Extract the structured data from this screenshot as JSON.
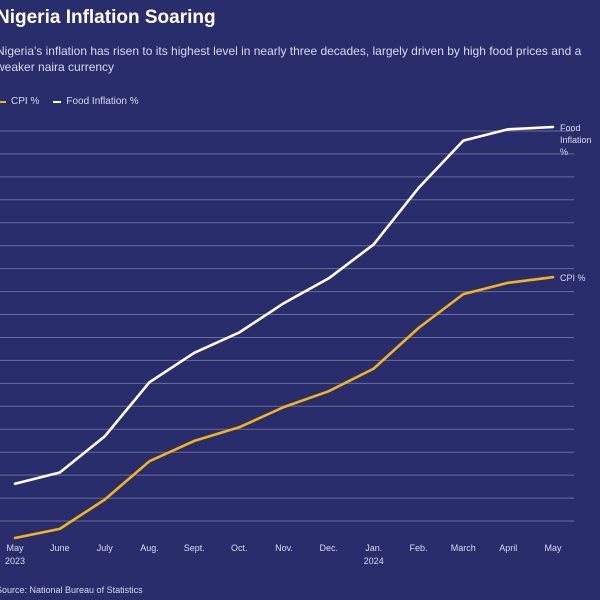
{
  "header": {
    "title": "Nigeria Inflation Soaring",
    "subtitle_line1": "Nigeria's inflation has risen to its highest level in nearly three decades, largely driven by high food prices and a",
    "subtitle_line2": "weaker naira currency"
  },
  "legend": {
    "cpi_label": "CPI %",
    "food_label": "Food Inflation %"
  },
  "footer": {
    "source": "Source: National Bureau of Statistics"
  },
  "colors": {
    "background": "#2a2d6b",
    "cpi": "#f2b41d",
    "food": "#ffffff"
  },
  "chart_data": {
    "type": "line",
    "title": "Nigeria Inflation Soaring",
    "x": [
      "May",
      "June",
      "July",
      "Aug.",
      "Sept.",
      "Oct.",
      "Nov.",
      "Dec.",
      "Jan.",
      "Feb.",
      "March",
      "April",
      "May"
    ],
    "x_sublabels": [
      "2023",
      "",
      "",
      "",
      "",
      "",
      "",
      "",
      "2024",
      "",
      "",
      "",
      ""
    ],
    "series": [
      {
        "name": "Food Inflation %",
        "end_label": [
          "Food",
          "Inflation",
          "%"
        ],
        "color": "#ffffff",
        "values": [
          24.8,
          25.3,
          26.9,
          29.3,
          30.6,
          31.5,
          32.8,
          33.9,
          35.4,
          37.9,
          40.0,
          40.5,
          40.6
        ]
      },
      {
        "name": "CPI %",
        "end_label": [
          "CPI %"
        ],
        "color": "#f2b41d",
        "values": [
          22.4,
          22.8,
          24.1,
          25.8,
          26.7,
          27.3,
          28.2,
          28.9,
          29.9,
          31.7,
          33.2,
          33.7,
          33.95
        ]
      }
    ],
    "ylim": [
      22,
      41
    ],
    "grid": true,
    "legend_position": "top-left"
  }
}
